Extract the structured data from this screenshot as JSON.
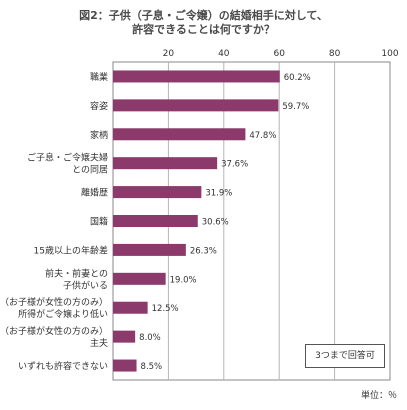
{
  "title": "図2：子供（子息・ご令嬢）の結婚相手に対して、",
  "title_line2": "許容できることは何ですか？",
  "note": "3つまで回答可",
  "unit_label": "単位：％",
  "bar_color": "#8b3a6b",
  "chart_data": {
    "type": "bar",
    "orientation": "horizontal",
    "xlim": [
      0,
      100
    ],
    "xticks": [
      20,
      40,
      60,
      80,
      100
    ],
    "grid": true,
    "categories": [
      [
        "職業"
      ],
      [
        "容姿"
      ],
      [
        "家柄"
      ],
      [
        "ご子息・ご令嬢夫婦",
        "との同居"
      ],
      [
        "離婚歴"
      ],
      [
        "国籍"
      ],
      [
        "15歳以上の年齢差"
      ],
      [
        "前夫・前妻との",
        "子供がいる"
      ],
      [
        "（お子様が女性の方のみ）",
        "所得がご令嬢より低い"
      ],
      [
        "（お子様が女性の方のみ）",
        "主夫"
      ],
      [
        "いずれも許容できない"
      ]
    ],
    "values": [
      60.2,
      59.7,
      47.8,
      37.6,
      31.9,
      30.6,
      26.3,
      19.0,
      12.5,
      8.0,
      8.5
    ],
    "value_labels": [
      "60.2%",
      "59.7%",
      "47.8%",
      "37.6%",
      "31.9%",
      "30.6%",
      "26.3%",
      "19.0%",
      "12.5%",
      "8.0%",
      "8.5%"
    ]
  }
}
